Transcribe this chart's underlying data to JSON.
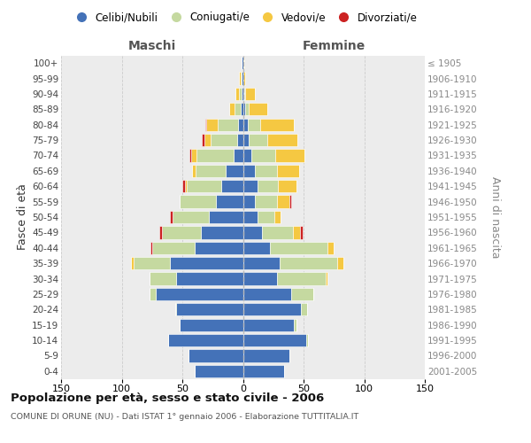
{
  "age_groups": [
    "0-4",
    "5-9",
    "10-14",
    "15-19",
    "20-24",
    "25-29",
    "30-34",
    "35-39",
    "40-44",
    "45-49",
    "50-54",
    "55-59",
    "60-64",
    "65-69",
    "70-74",
    "75-79",
    "80-84",
    "85-89",
    "90-94",
    "95-99",
    "100+"
  ],
  "birth_years": [
    "2001-2005",
    "1996-2000",
    "1991-1995",
    "1986-1990",
    "1981-1985",
    "1976-1980",
    "1971-1975",
    "1966-1970",
    "1961-1965",
    "1956-1960",
    "1951-1955",
    "1946-1950",
    "1941-1945",
    "1936-1940",
    "1931-1935",
    "1926-1930",
    "1921-1925",
    "1916-1920",
    "1911-1915",
    "1906-1910",
    "≤ 1905"
  ],
  "males_celibi": [
    40,
    45,
    62,
    52,
    55,
    72,
    55,
    60,
    40,
    35,
    28,
    22,
    18,
    14,
    8,
    5,
    4,
    2,
    1,
    1,
    1
  ],
  "males_coniugati": [
    0,
    0,
    0,
    0,
    1,
    5,
    22,
    30,
    35,
    32,
    30,
    30,
    28,
    25,
    30,
    22,
    17,
    5,
    2,
    1,
    0
  ],
  "males_vedovi": [
    0,
    0,
    0,
    0,
    0,
    0,
    0,
    2,
    0,
    0,
    0,
    0,
    2,
    3,
    5,
    5,
    9,
    4,
    3,
    1,
    0
  ],
  "males_divorziati": [
    0,
    0,
    0,
    0,
    0,
    0,
    0,
    0,
    1,
    2,
    2,
    0,
    2,
    0,
    1,
    2,
    1,
    0,
    0,
    0,
    0
  ],
  "females_celibi": [
    34,
    38,
    52,
    42,
    48,
    40,
    28,
    30,
    22,
    16,
    12,
    10,
    12,
    10,
    7,
    5,
    4,
    2,
    1,
    0,
    0
  ],
  "females_coniugati": [
    0,
    0,
    2,
    2,
    5,
    18,
    40,
    48,
    48,
    25,
    14,
    18,
    17,
    18,
    20,
    15,
    10,
    3,
    1,
    0,
    0
  ],
  "females_vedovi": [
    0,
    0,
    0,
    0,
    0,
    0,
    2,
    5,
    5,
    6,
    5,
    10,
    15,
    18,
    24,
    25,
    28,
    15,
    8,
    2,
    1
  ],
  "females_divorziati": [
    0,
    0,
    0,
    0,
    0,
    0,
    0,
    0,
    0,
    2,
    0,
    2,
    0,
    0,
    0,
    0,
    0,
    0,
    0,
    0,
    0
  ],
  "color_celibi": "#4472b8",
  "color_coniugati": "#c5d9a0",
  "color_vedovi": "#f5c842",
  "color_divorziati": "#cc2222",
  "xlim": 150,
  "title": "Popolazione per età, sesso e stato civile - 2006",
  "subtitle": "COMUNE DI ORUNE (NU) - Dati ISTAT 1° gennaio 2006 - Elaborazione TUTTITALIA.IT",
  "legend_labels": [
    "Celibi/Nubili",
    "Coniugati/e",
    "Vedovi/e",
    "Divorziati/e"
  ],
  "ylabel_left": "Fasce di età",
  "ylabel_right": "Anni di nascita",
  "label_maschi": "Maschi",
  "label_femmine": "Femmine",
  "bg_color": "#ececec"
}
